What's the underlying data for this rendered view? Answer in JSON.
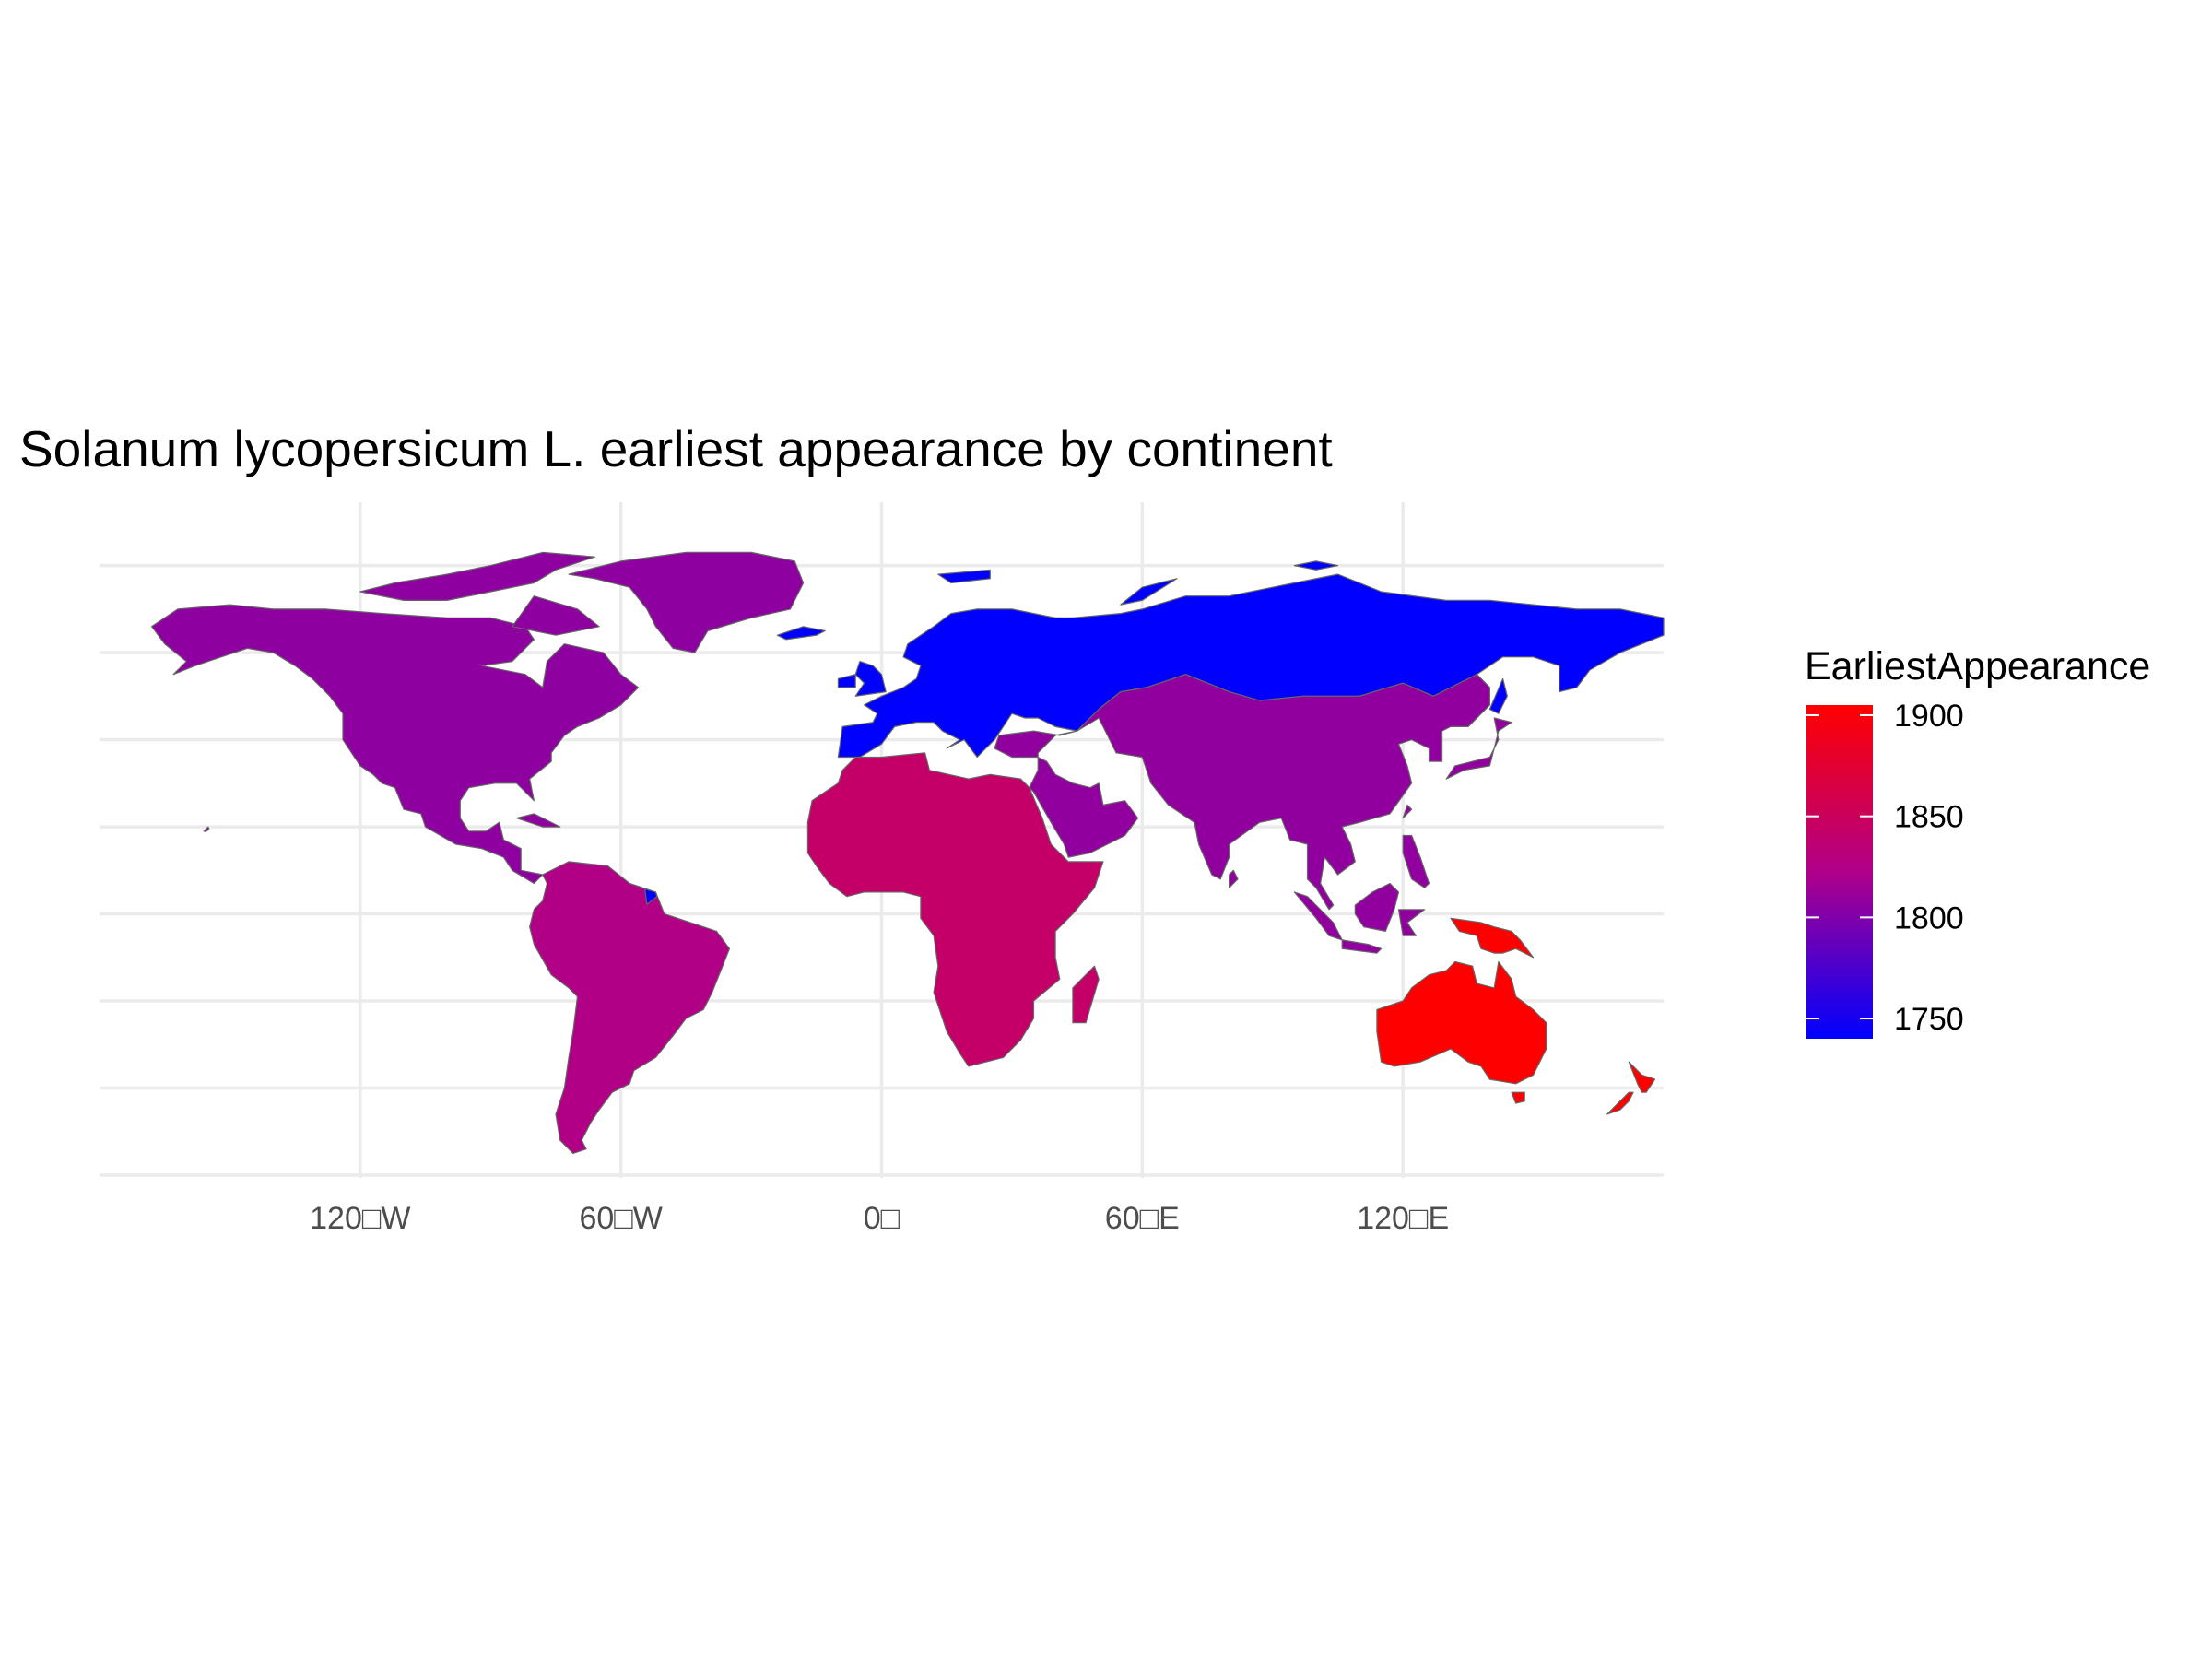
{
  "chart_data": {
    "type": "choropleth-map",
    "title": "Solanum lycopersicum L. earliest appearance by continent",
    "x_axis": {
      "ticks": [
        "120□W",
        "60□W",
        "0□",
        "60□E",
        "120□E"
      ],
      "tick_values": [
        -120,
        -60,
        0,
        60,
        120
      ],
      "range": [
        -180,
        180
      ]
    },
    "y_axis": {
      "gridline_values": [
        80,
        60,
        40,
        20,
        0,
        -20,
        -40,
        -60
      ],
      "range": [
        -60,
        85
      ],
      "tick_labels_shown": false
    },
    "grid": true,
    "legend": {
      "title": "EarliestAppearance",
      "placement": "right",
      "ticks": [
        1900,
        1850,
        1800,
        1750
      ],
      "range": [
        1740,
        1905
      ],
      "low_color": "#0000ff",
      "high_color": "#ff0000"
    },
    "continents": [
      {
        "name": "Europe",
        "value": 1740
      },
      {
        "name": "Asia",
        "value": 1808
      },
      {
        "name": "North America",
        "value": 1807
      },
      {
        "name": "South America",
        "value": 1825
      },
      {
        "name": "Africa",
        "value": 1843
      },
      {
        "name": "Oceania",
        "value": 1905
      }
    ]
  }
}
